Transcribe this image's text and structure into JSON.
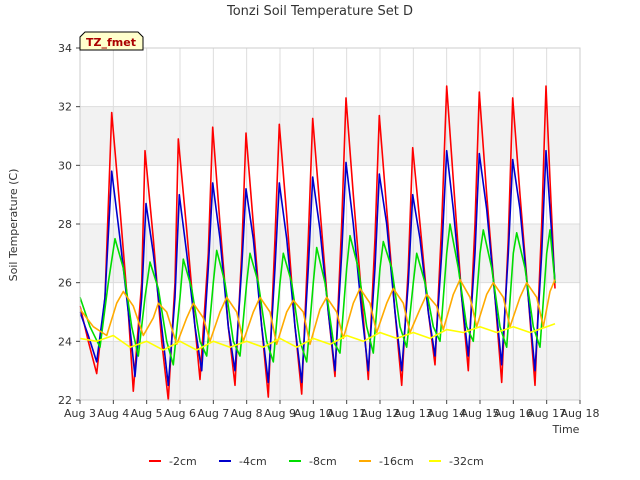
{
  "chart_data": {
    "type": "line",
    "title": "Tonzi Soil Temperature Set D",
    "xlabel": "Time",
    "ylabel": "Soil Temperature (C)",
    "badge": "TZ_fmet",
    "xlim": [
      3,
      18
    ],
    "ylim": [
      22,
      34
    ],
    "x_ticks": [
      {
        "v": 3,
        "label": "Aug 3"
      },
      {
        "v": 4,
        "label": "Aug 4"
      },
      {
        "v": 5,
        "label": "Aug 5"
      },
      {
        "v": 6,
        "label": "Aug 6"
      },
      {
        "v": 7,
        "label": "Aug 7"
      },
      {
        "v": 8,
        "label": "Aug 8"
      },
      {
        "v": 9,
        "label": "Aug 9"
      },
      {
        "v": 10,
        "label": "Aug 10"
      },
      {
        "v": 11,
        "label": "Aug 11"
      },
      {
        "v": 12,
        "label": "Aug 12"
      },
      {
        "v": 13,
        "label": "Aug 13"
      },
      {
        "v": 14,
        "label": "Aug 14"
      },
      {
        "v": 15,
        "label": "Aug 15"
      },
      {
        "v": 16,
        "label": "Aug 16"
      },
      {
        "v": 17,
        "label": "Aug 17"
      },
      {
        "v": 18,
        "label": "Aug 18"
      }
    ],
    "y_ticks": [
      22,
      24,
      26,
      28,
      30,
      32,
      34
    ],
    "grid": true,
    "legend_position": "bottom-center",
    "series": [
      {
        "name": "-2cm",
        "color": "#ff0000",
        "points": [
          [
            3.0,
            25.2
          ],
          [
            3.25,
            24.0
          ],
          [
            3.5,
            22.9
          ],
          [
            3.75,
            25.5
          ],
          [
            3.95,
            31.8
          ],
          [
            4.2,
            28.5
          ],
          [
            4.45,
            25.0
          ],
          [
            4.6,
            22.3
          ],
          [
            4.85,
            26.0
          ],
          [
            4.95,
            30.5
          ],
          [
            5.2,
            27.5
          ],
          [
            5.45,
            24.0
          ],
          [
            5.65,
            22.0
          ],
          [
            5.85,
            26.0
          ],
          [
            5.95,
            30.9
          ],
          [
            6.2,
            27.8
          ],
          [
            6.45,
            24.5
          ],
          [
            6.6,
            22.7
          ],
          [
            6.85,
            27.0
          ],
          [
            6.98,
            31.3
          ],
          [
            7.2,
            28.0
          ],
          [
            7.45,
            24.5
          ],
          [
            7.65,
            22.5
          ],
          [
            7.85,
            27.0
          ],
          [
            7.98,
            31.1
          ],
          [
            8.2,
            28.0
          ],
          [
            8.45,
            24.5
          ],
          [
            8.65,
            22.1
          ],
          [
            8.85,
            27.5
          ],
          [
            8.98,
            31.4
          ],
          [
            9.2,
            28.3
          ],
          [
            9.45,
            24.5
          ],
          [
            9.65,
            22.2
          ],
          [
            9.85,
            27.5
          ],
          [
            9.98,
            31.6
          ],
          [
            10.2,
            28.5
          ],
          [
            10.45,
            25.0
          ],
          [
            10.65,
            22.8
          ],
          [
            10.85,
            28.0
          ],
          [
            10.98,
            32.3
          ],
          [
            11.2,
            29.0
          ],
          [
            11.45,
            25.5
          ],
          [
            11.65,
            22.7
          ],
          [
            11.85,
            27.5
          ],
          [
            11.98,
            31.7
          ],
          [
            12.2,
            28.5
          ],
          [
            12.45,
            25.0
          ],
          [
            12.65,
            22.5
          ],
          [
            12.85,
            26.5
          ],
          [
            12.98,
            30.6
          ],
          [
            13.2,
            28.0
          ],
          [
            13.45,
            25.0
          ],
          [
            13.65,
            23.2
          ],
          [
            13.85,
            28.0
          ],
          [
            14.0,
            32.7
          ],
          [
            14.2,
            29.5
          ],
          [
            14.45,
            25.5
          ],
          [
            14.65,
            23.0
          ],
          [
            14.85,
            28.0
          ],
          [
            14.98,
            32.5
          ],
          [
            15.2,
            29.0
          ],
          [
            15.45,
            25.5
          ],
          [
            15.65,
            22.6
          ],
          [
            15.85,
            27.5
          ],
          [
            15.98,
            32.3
          ],
          [
            16.2,
            29.0
          ],
          [
            16.45,
            25.5
          ],
          [
            16.65,
            22.5
          ],
          [
            16.85,
            28.0
          ],
          [
            16.98,
            32.7
          ],
          [
            17.1,
            29.5
          ],
          [
            17.25,
            25.8
          ]
        ]
      },
      {
        "name": "-4cm",
        "color": "#0000cc",
        "points": [
          [
            3.0,
            25.0
          ],
          [
            3.25,
            24.2
          ],
          [
            3.5,
            23.3
          ],
          [
            3.75,
            25.5
          ],
          [
            3.95,
            29.8
          ],
          [
            4.2,
            27.5
          ],
          [
            4.45,
            25.0
          ],
          [
            4.65,
            22.8
          ],
          [
            4.85,
            25.5
          ],
          [
            4.98,
            28.7
          ],
          [
            5.2,
            27.0
          ],
          [
            5.45,
            24.5
          ],
          [
            5.65,
            22.5
          ],
          [
            5.85,
            25.5
          ],
          [
            5.98,
            29.0
          ],
          [
            6.2,
            27.0
          ],
          [
            6.45,
            24.5
          ],
          [
            6.65,
            23.0
          ],
          [
            6.85,
            26.5
          ],
          [
            6.98,
            29.4
          ],
          [
            7.2,
            27.5
          ],
          [
            7.45,
            24.5
          ],
          [
            7.65,
            23.0
          ],
          [
            7.85,
            26.5
          ],
          [
            7.98,
            29.2
          ],
          [
            8.2,
            27.5
          ],
          [
            8.45,
            24.5
          ],
          [
            8.65,
            22.6
          ],
          [
            8.85,
            26.5
          ],
          [
            8.98,
            29.4
          ],
          [
            9.2,
            27.5
          ],
          [
            9.45,
            24.5
          ],
          [
            9.65,
            22.6
          ],
          [
            9.85,
            26.5
          ],
          [
            9.98,
            29.6
          ],
          [
            10.2,
            27.8
          ],
          [
            10.45,
            25.0
          ],
          [
            10.65,
            23.0
          ],
          [
            10.85,
            27.0
          ],
          [
            10.98,
            30.1
          ],
          [
            11.2,
            28.0
          ],
          [
            11.45,
            25.0
          ],
          [
            11.65,
            23.0
          ],
          [
            11.85,
            26.5
          ],
          [
            11.98,
            29.7
          ],
          [
            12.2,
            28.0
          ],
          [
            12.45,
            25.0
          ],
          [
            12.65,
            23.0
          ],
          [
            12.85,
            26.0
          ],
          [
            12.98,
            29.0
          ],
          [
            13.2,
            27.5
          ],
          [
            13.45,
            25.0
          ],
          [
            13.65,
            23.5
          ],
          [
            13.85,
            27.0
          ],
          [
            14.0,
            30.5
          ],
          [
            14.2,
            28.5
          ],
          [
            14.45,
            25.5
          ],
          [
            14.65,
            23.5
          ],
          [
            14.85,
            27.0
          ],
          [
            14.98,
            30.4
          ],
          [
            15.2,
            28.5
          ],
          [
            15.45,
            25.5
          ],
          [
            15.65,
            23.2
          ],
          [
            15.85,
            27.0
          ],
          [
            15.98,
            30.2
          ],
          [
            16.2,
            28.5
          ],
          [
            16.45,
            25.5
          ],
          [
            16.65,
            23.0
          ],
          [
            16.85,
            27.0
          ],
          [
            16.98,
            30.5
          ],
          [
            17.1,
            28.5
          ],
          [
            17.25,
            26.0
          ]
        ]
      },
      {
        "name": "-8cm",
        "color": "#00dd00",
        "points": [
          [
            3.0,
            25.5
          ],
          [
            3.3,
            24.5
          ],
          [
            3.6,
            23.8
          ],
          [
            3.85,
            26.0
          ],
          [
            4.05,
            27.5
          ],
          [
            4.3,
            26.5
          ],
          [
            4.55,
            24.5
          ],
          [
            4.75,
            23.5
          ],
          [
            4.95,
            25.5
          ],
          [
            5.1,
            26.7
          ],
          [
            5.35,
            25.8
          ],
          [
            5.6,
            24.0
          ],
          [
            5.8,
            23.2
          ],
          [
            6.0,
            25.5
          ],
          [
            6.1,
            26.8
          ],
          [
            6.35,
            25.8
          ],
          [
            6.6,
            24.0
          ],
          [
            6.8,
            23.5
          ],
          [
            7.0,
            26.0
          ],
          [
            7.1,
            27.1
          ],
          [
            7.35,
            26.0
          ],
          [
            7.6,
            24.0
          ],
          [
            7.8,
            23.5
          ],
          [
            8.0,
            26.0
          ],
          [
            8.1,
            27.0
          ],
          [
            8.35,
            26.0
          ],
          [
            8.6,
            24.0
          ],
          [
            8.8,
            23.3
          ],
          [
            9.0,
            26.0
          ],
          [
            9.1,
            27.0
          ],
          [
            9.35,
            26.0
          ],
          [
            9.6,
            24.0
          ],
          [
            9.8,
            23.3
          ],
          [
            10.0,
            26.0
          ],
          [
            10.1,
            27.2
          ],
          [
            10.35,
            26.0
          ],
          [
            10.6,
            24.0
          ],
          [
            10.8,
            23.6
          ],
          [
            11.0,
            26.5
          ],
          [
            11.1,
            27.6
          ],
          [
            11.35,
            26.5
          ],
          [
            11.6,
            24.5
          ],
          [
            11.8,
            23.6
          ],
          [
            12.0,
            26.5
          ],
          [
            12.1,
            27.4
          ],
          [
            12.35,
            26.5
          ],
          [
            12.6,
            24.5
          ],
          [
            12.8,
            23.8
          ],
          [
            13.0,
            26.0
          ],
          [
            13.1,
            27.0
          ],
          [
            13.35,
            26.0
          ],
          [
            13.6,
            24.5
          ],
          [
            13.8,
            24.0
          ],
          [
            14.0,
            27.0
          ],
          [
            14.1,
            28.0
          ],
          [
            14.35,
            26.5
          ],
          [
            14.6,
            24.5
          ],
          [
            14.8,
            24.0
          ],
          [
            15.0,
            27.0
          ],
          [
            15.1,
            27.8
          ],
          [
            15.35,
            26.5
          ],
          [
            15.6,
            24.5
          ],
          [
            15.8,
            23.8
          ],
          [
            16.0,
            27.0
          ],
          [
            16.1,
            27.7
          ],
          [
            16.35,
            26.5
          ],
          [
            16.6,
            24.5
          ],
          [
            16.8,
            23.8
          ],
          [
            17.0,
            27.0
          ],
          [
            17.1,
            27.8
          ],
          [
            17.25,
            26.0
          ]
        ]
      },
      {
        "name": "-16cm",
        "color": "#ffaa00",
        "points": [
          [
            3.0,
            25.1
          ],
          [
            3.4,
            24.5
          ],
          [
            3.8,
            24.2
          ],
          [
            4.1,
            25.3
          ],
          [
            4.3,
            25.7
          ],
          [
            4.6,
            25.2
          ],
          [
            4.9,
            24.2
          ],
          [
            5.2,
            24.8
          ],
          [
            5.35,
            25.3
          ],
          [
            5.6,
            25.0
          ],
          [
            5.9,
            23.9
          ],
          [
            6.2,
            24.8
          ],
          [
            6.4,
            25.3
          ],
          [
            6.7,
            24.8
          ],
          [
            6.9,
            24.0
          ],
          [
            7.2,
            25.0
          ],
          [
            7.4,
            25.5
          ],
          [
            7.7,
            25.0
          ],
          [
            7.9,
            24.0
          ],
          [
            8.2,
            25.0
          ],
          [
            8.4,
            25.5
          ],
          [
            8.7,
            25.0
          ],
          [
            8.9,
            23.9
          ],
          [
            9.2,
            25.0
          ],
          [
            9.4,
            25.4
          ],
          [
            9.7,
            25.0
          ],
          [
            9.9,
            23.9
          ],
          [
            10.2,
            25.1
          ],
          [
            10.4,
            25.5
          ],
          [
            10.7,
            25.0
          ],
          [
            10.9,
            24.1
          ],
          [
            11.2,
            25.3
          ],
          [
            11.4,
            25.8
          ],
          [
            11.7,
            25.3
          ],
          [
            11.9,
            24.3
          ],
          [
            12.2,
            25.3
          ],
          [
            12.4,
            25.8
          ],
          [
            12.7,
            25.3
          ],
          [
            12.9,
            24.3
          ],
          [
            13.2,
            25.1
          ],
          [
            13.4,
            25.6
          ],
          [
            13.7,
            25.2
          ],
          [
            13.9,
            24.4
          ],
          [
            14.2,
            25.6
          ],
          [
            14.4,
            26.1
          ],
          [
            14.7,
            25.5
          ],
          [
            14.9,
            24.5
          ],
          [
            15.2,
            25.6
          ],
          [
            15.4,
            26.0
          ],
          [
            15.7,
            25.5
          ],
          [
            15.9,
            24.5
          ],
          [
            16.2,
            25.5
          ],
          [
            16.4,
            26.0
          ],
          [
            16.7,
            25.5
          ],
          [
            16.9,
            24.5
          ],
          [
            17.1,
            25.7
          ],
          [
            17.25,
            26.1
          ]
        ]
      },
      {
        "name": "-32cm",
        "color": "#ffff00",
        "points": [
          [
            3.0,
            24.1
          ],
          [
            3.5,
            24.0
          ],
          [
            4.0,
            24.2
          ],
          [
            4.5,
            23.8
          ],
          [
            5.0,
            24.0
          ],
          [
            5.5,
            23.7
          ],
          [
            6.0,
            24.0
          ],
          [
            6.5,
            23.7
          ],
          [
            7.0,
            24.0
          ],
          [
            7.5,
            23.8
          ],
          [
            8.0,
            24.0
          ],
          [
            8.5,
            23.8
          ],
          [
            9.0,
            24.1
          ],
          [
            9.5,
            23.8
          ],
          [
            10.0,
            24.1
          ],
          [
            10.5,
            23.9
          ],
          [
            11.0,
            24.2
          ],
          [
            11.5,
            24.0
          ],
          [
            12.0,
            24.3
          ],
          [
            12.5,
            24.1
          ],
          [
            13.0,
            24.3
          ],
          [
            13.5,
            24.1
          ],
          [
            14.0,
            24.4
          ],
          [
            14.5,
            24.3
          ],
          [
            15.0,
            24.5
          ],
          [
            15.5,
            24.3
          ],
          [
            16.0,
            24.5
          ],
          [
            16.5,
            24.3
          ],
          [
            17.0,
            24.5
          ],
          [
            17.25,
            24.6
          ]
        ]
      }
    ]
  }
}
